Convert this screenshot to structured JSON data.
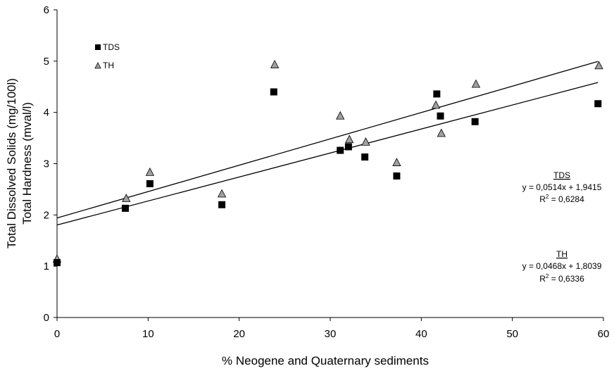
{
  "chart_data": {
    "type": "scatter",
    "xlabel": "% Neogene and Quaternary sediments",
    "ylabel_lines": [
      "Total Dissolved Solids (mg/100l)",
      "Total Hardness (mval/l)"
    ],
    "xlim": [
      0,
      60
    ],
    "ylim": [
      0,
      6
    ],
    "x_ticks": [
      "0",
      "10",
      "20",
      "30",
      "40",
      "50",
      "60"
    ],
    "y_ticks": [
      "0",
      "1",
      "2",
      "3",
      "4",
      "5",
      "6"
    ],
    "grid": false,
    "legend_position": "top-left",
    "series": [
      {
        "name": "TDS",
        "marker": "square",
        "color": "#000000",
        "points": [
          [
            0,
            1.07
          ],
          [
            7.5,
            2.13
          ],
          [
            10.2,
            2.61
          ],
          [
            18.1,
            2.2
          ],
          [
            23.8,
            4.4
          ],
          [
            31.1,
            3.26
          ],
          [
            32.0,
            3.33
          ],
          [
            33.8,
            3.13
          ],
          [
            37.3,
            2.76
          ],
          [
            41.7,
            4.36
          ],
          [
            42.1,
            3.93
          ],
          [
            45.9,
            3.82
          ],
          [
            59.4,
            4.17
          ]
        ]
      },
      {
        "name": "TH",
        "marker": "triangle",
        "color": "#a0a0a0",
        "points": [
          [
            0,
            1.14
          ],
          [
            7.6,
            2.32
          ],
          [
            10.2,
            2.83
          ],
          [
            18.1,
            2.41
          ],
          [
            23.9,
            4.93
          ],
          [
            31.1,
            3.93
          ],
          [
            32.1,
            3.47
          ],
          [
            33.9,
            3.42
          ],
          [
            37.3,
            3.02
          ],
          [
            41.6,
            4.14
          ],
          [
            42.2,
            3.59
          ],
          [
            46.0,
            4.55
          ],
          [
            59.5,
            4.91
          ]
        ]
      }
    ],
    "trendlines": [
      {
        "slope": 0.0514,
        "intercept": 1.9415,
        "x_range": [
          0,
          59.4
        ]
      },
      {
        "slope": 0.0468,
        "intercept": 1.8039,
        "x_range": [
          0,
          59.4
        ]
      }
    ],
    "annotations": [
      {
        "name": "TDS",
        "equation": "y = 0,0514x + 1,9415",
        "r2_label": "R",
        "r2_value": " = 0,6284"
      },
      {
        "name": "TH",
        "equation": "y = 0,0468x + 1,8039",
        "r2_label": "R",
        "r2_value": " = 0,6336"
      }
    ],
    "r2_exponent": "2"
  }
}
